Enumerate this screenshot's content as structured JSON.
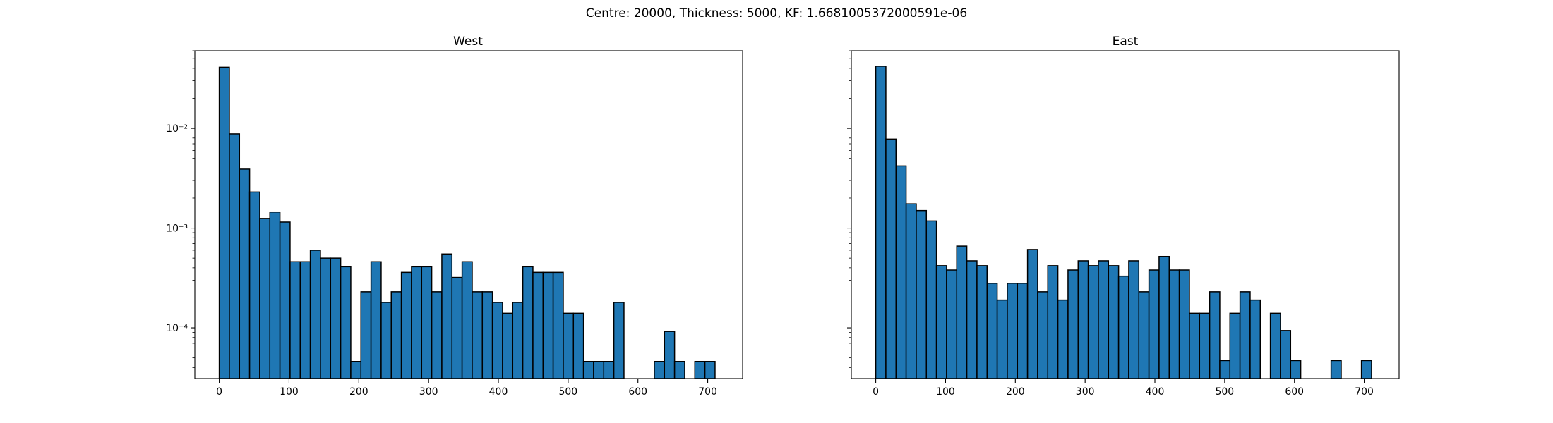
{
  "suptitle": "Centre: 20000, Thickness: 5000, KF: 1.6681005372000591e-06",
  "chart_data": [
    {
      "type": "bar",
      "title": "West",
      "yscale": "log",
      "xlim": [
        -35,
        750
      ],
      "ylim": [
        3.1e-05,
        0.06
      ],
      "bin_start": 0,
      "bin_width": 14.5,
      "xticks": [
        0,
        100,
        200,
        300,
        400,
        500,
        600,
        700
      ],
      "yticks": [
        {
          "value": 0.0001,
          "label": "10⁻⁴"
        },
        {
          "value": 0.001,
          "label": "10⁻³"
        },
        {
          "value": 0.01,
          "label": "10⁻²"
        }
      ],
      "values": [
        0.041,
        0.0088,
        0.0039,
        0.0023,
        0.00125,
        0.00145,
        0.00115,
        0.00046,
        0.00046,
        0.0006,
        0.0005,
        0.0005,
        0.00041,
        4.6e-05,
        0.00023,
        0.00046,
        0.00018,
        0.00023,
        0.00036,
        0.00041,
        0.00041,
        0.00023,
        0.00055,
        0.00032,
        0.00046,
        0.00023,
        0.00023,
        0.00018,
        0.00014,
        0.00018,
        0.00041,
        0.00036,
        0.00036,
        0.00036,
        0.00014,
        0.00014,
        4.6e-05,
        4.6e-05,
        4.6e-05,
        0.00018,
        0,
        0,
        0,
        4.6e-05,
        9.2e-05,
        4.6e-05,
        0,
        4.6e-05,
        4.6e-05
      ]
    },
    {
      "type": "bar",
      "title": "East",
      "yscale": "log",
      "xlim": [
        -35,
        750
      ],
      "ylim": [
        3.1e-05,
        0.06
      ],
      "bin_start": 0,
      "bin_width": 14.5,
      "xticks": [
        0,
        100,
        200,
        300,
        400,
        500,
        600,
        700
      ],
      "yticks": [
        {
          "value": 0.0001,
          "label": ""
        },
        {
          "value": 0.001,
          "label": ""
        },
        {
          "value": 0.01,
          "label": ""
        }
      ],
      "values": [
        0.042,
        0.0078,
        0.0042,
        0.00175,
        0.0015,
        0.00118,
        0.00042,
        0.00038,
        0.00066,
        0.00047,
        0.00042,
        0.00028,
        0.00019,
        0.00028,
        0.00028,
        0.00061,
        0.00023,
        0.00042,
        0.00019,
        0.00038,
        0.00047,
        0.00042,
        0.00047,
        0.00042,
        0.00033,
        0.00047,
        0.00023,
        0.00038,
        0.00052,
        0.00038,
        0.00038,
        0.00014,
        0.00014,
        0.00023,
        4.7e-05,
        0.00014,
        0.00023,
        0.00019,
        0,
        0.00014,
        9.4e-05,
        4.7e-05,
        0,
        0,
        0,
        4.7e-05,
        0,
        0,
        4.7e-05
      ]
    }
  ]
}
